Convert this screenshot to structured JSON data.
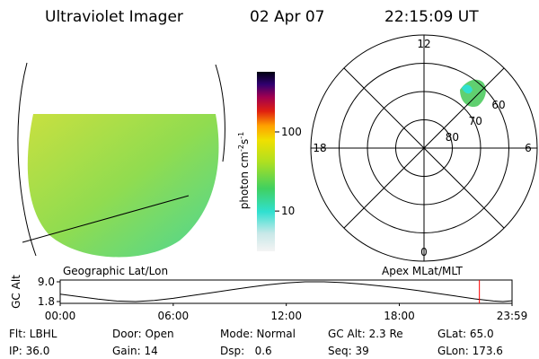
{
  "header": {
    "title": "Ultraviolet Imager",
    "date": "02 Apr 07",
    "time": "22:15:09 UT"
  },
  "image_panel": {
    "label": "Geographic Lat/Lon"
  },
  "colorbar": {
    "label": {
      "text": "photon cm",
      "exp1": "-2",
      "unit2": "s",
      "exp2": "-1"
    },
    "scale": "log",
    "lim": [
      3.1,
      575
    ],
    "ticks": [
      100,
      10
    ]
  },
  "polar_panel": {
    "label": "Apex MLat/MLT",
    "rlim": [
      90,
      50
    ],
    "rticks": [
      80,
      70,
      60
    ],
    "theta_ticks": [
      12,
      6,
      0,
      18
    ]
  },
  "chart_data": {
    "type": "line",
    "ylabel": "GC Alt",
    "x": [
      0,
      1,
      2,
      3,
      4,
      5,
      6,
      7,
      8,
      9,
      10,
      11,
      12,
      13,
      14,
      15,
      16,
      17,
      18,
      19,
      20,
      21,
      22,
      23,
      23.5,
      23.983
    ],
    "values": [
      4.5,
      3.6,
      2.7,
      2.0,
      1.8,
      2.2,
      3.0,
      4.0,
      5.0,
      6.0,
      7.0,
      7.9,
      8.6,
      9.0,
      9.0,
      8.7,
      8.2,
      7.5,
      6.7,
      5.8,
      4.8,
      3.8,
      2.8,
      2.0,
      1.8,
      2.1
    ],
    "color": "#000000",
    "xlim": [
      0,
      23.983
    ],
    "xticks": [
      {
        "value": 0,
        "label": "00:00"
      },
      {
        "value": 6,
        "label": "06:00"
      },
      {
        "value": 12,
        "label": "12:00"
      },
      {
        "value": 18,
        "label": "18:00"
      },
      {
        "value": 23.983,
        "label": "23:59"
      }
    ],
    "ylim": [
      1.8,
      9.0
    ],
    "yticks": [
      {
        "value": 9.0,
        "label": "9.0"
      },
      {
        "value": 1.8,
        "label": "1.8"
      }
    ],
    "marker": {
      "x": 22.25,
      "color": "#ff0000"
    }
  },
  "footer": {
    "rows": [
      [
        "Flt: LBHL",
        "Door: Open",
        "Mode: Normal",
        "GC Alt: 2.3 Re",
        "GLat: 65.0"
      ],
      [
        "IP: 36.0",
        "Gain: 14",
        "Dsp:   0.6",
        "Seq: 39",
        "GLon: 173.6"
      ]
    ]
  }
}
